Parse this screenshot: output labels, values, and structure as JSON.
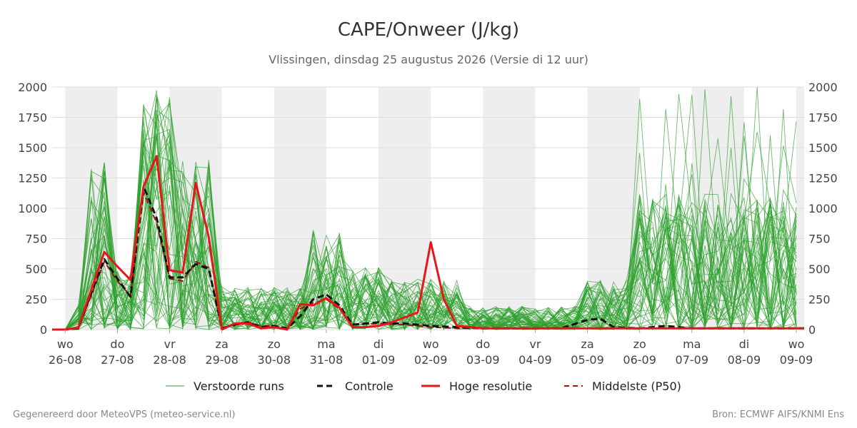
{
  "chart_data": {
    "type": "line",
    "title": "CAPE/Onweer (J/kg)",
    "subtitle": "Vlissingen, dinsdag 25 augustus 2026 (Versie di 12 uur)",
    "ylim": [
      0,
      2000
    ],
    "yticks": [
      0,
      250,
      500,
      750,
      1000,
      1250,
      1500,
      1750,
      2000
    ],
    "xlim": [
      -0.25,
      14.15
    ],
    "x_ticks": [
      {
        "x": 0,
        "day": "wo",
        "date": "26-08"
      },
      {
        "x": 1,
        "day": "do",
        "date": "27-08"
      },
      {
        "x": 2,
        "day": "vr",
        "date": "28-08"
      },
      {
        "x": 3,
        "day": "za",
        "date": "29-08"
      },
      {
        "x": 4,
        "day": "zo",
        "date": "30-08"
      },
      {
        "x": 5,
        "day": "ma",
        "date": "31-08"
      },
      {
        "x": 6,
        "day": "di",
        "date": "01-09"
      },
      {
        "x": 7,
        "day": "wo",
        "date": "02-09"
      },
      {
        "x": 8,
        "day": "do",
        "date": "03-09"
      },
      {
        "x": 9,
        "day": "vr",
        "date": "04-09"
      },
      {
        "x": 10,
        "day": "za",
        "date": "05-09"
      },
      {
        "x": 11,
        "day": "zo",
        "date": "06-09"
      },
      {
        "x": 12,
        "day": "ma",
        "date": "07-09"
      },
      {
        "x": 13,
        "day": "di",
        "date": "08-09"
      },
      {
        "x": 14,
        "day": "wo",
        "date": "09-09"
      }
    ],
    "shaded_days": [
      [
        0,
        1
      ],
      [
        2,
        3
      ],
      [
        4,
        5
      ],
      [
        6,
        7
      ],
      [
        8,
        9
      ],
      [
        10,
        11
      ],
      [
        12,
        13
      ],
      [
        14,
        14.15
      ]
    ],
    "grid": true,
    "legend_position": "bottom",
    "colors": {
      "ensemble": "#2ca02c",
      "control": "#111111",
      "high_res": "#e8161b",
      "median": "#a51010",
      "shade": "#eeeeee",
      "grid": "#dddddd"
    },
    "series": [
      {
        "name": "Hoge resolutie",
        "style": "red-solid",
        "x": [
          -0.25,
          0,
          0.25,
          0.5,
          0.75,
          1,
          1.25,
          1.5,
          1.75,
          2,
          2.25,
          2.5,
          2.75,
          3,
          3.25,
          3.5,
          3.75,
          4,
          4.25,
          4.5,
          4.75,
          5,
          5.25,
          5.5,
          5.75,
          6,
          6.25,
          6.5,
          6.75,
          7,
          7.25,
          7.5,
          8,
          9,
          10,
          11,
          12,
          13,
          14,
          14.15
        ],
        "y": [
          0,
          0,
          15,
          330,
          640,
          520,
          410,
          1180,
          1430,
          490,
          470,
          1210,
          760,
          0,
          50,
          50,
          10,
          20,
          0,
          210,
          200,
          260,
          180,
          20,
          20,
          30,
          60,
          100,
          140,
          720,
          250,
          30,
          10,
          10,
          10,
          10,
          10,
          10,
          10,
          10
        ]
      },
      {
        "name": "Controle",
        "style": "black-dashed",
        "x": [
          -0.25,
          0,
          0.25,
          0.5,
          0.75,
          1,
          1.25,
          1.5,
          1.75,
          2,
          2.25,
          2.5,
          2.75,
          3,
          3.25,
          3.5,
          3.75,
          4,
          4.25,
          4.5,
          4.75,
          5,
          5.25,
          5.5,
          5.75,
          6,
          6.25,
          6.5,
          7,
          7.5,
          8,
          8.5,
          9,
          9.5,
          10,
          10.25,
          10.5,
          11,
          11.5,
          12,
          13,
          14,
          14.15
        ],
        "y": [
          0,
          0,
          10,
          300,
          580,
          420,
          270,
          1180,
          920,
          430,
          430,
          540,
          500,
          10,
          40,
          60,
          20,
          30,
          10,
          110,
          250,
          290,
          200,
          40,
          50,
          60,
          50,
          50,
          30,
          20,
          10,
          10,
          10,
          10,
          80,
          90,
          20,
          10,
          30,
          10,
          10,
          10,
          10
        ]
      },
      {
        "name": "Middelste (P50)",
        "style": "darkred-dashed",
        "x": [
          -0.25,
          0,
          0.25,
          0.5,
          0.75,
          1,
          1.25,
          1.5,
          1.75,
          2,
          2.25,
          2.5,
          2.75,
          3,
          3.25,
          3.5,
          3.75,
          4,
          4.25,
          4.5,
          4.75,
          5,
          5.25,
          5.5,
          6,
          6.5,
          7,
          7.5,
          8,
          9,
          10,
          11,
          12,
          13,
          14,
          14.15
        ],
        "y": [
          0,
          0,
          10,
          280,
          560,
          400,
          280,
          1130,
          880,
          420,
          400,
          560,
          510,
          10,
          50,
          60,
          30,
          30,
          10,
          170,
          220,
          250,
          170,
          40,
          50,
          40,
          20,
          10,
          10,
          10,
          10,
          10,
          10,
          10,
          10,
          10
        ]
      }
    ],
    "ensemble_label": "Verstoorde runs"
  },
  "legend": {
    "ensemble": "Verstoorde runs",
    "control": "Controle",
    "high_res": "Hoge resolutie",
    "median": "Middelste (P50)"
  },
  "footer": {
    "left": "Gegenereerd door MeteoVPS (meteo-service.nl)",
    "right": "Bron: ECMWF AIFS/KNMI Ens"
  }
}
